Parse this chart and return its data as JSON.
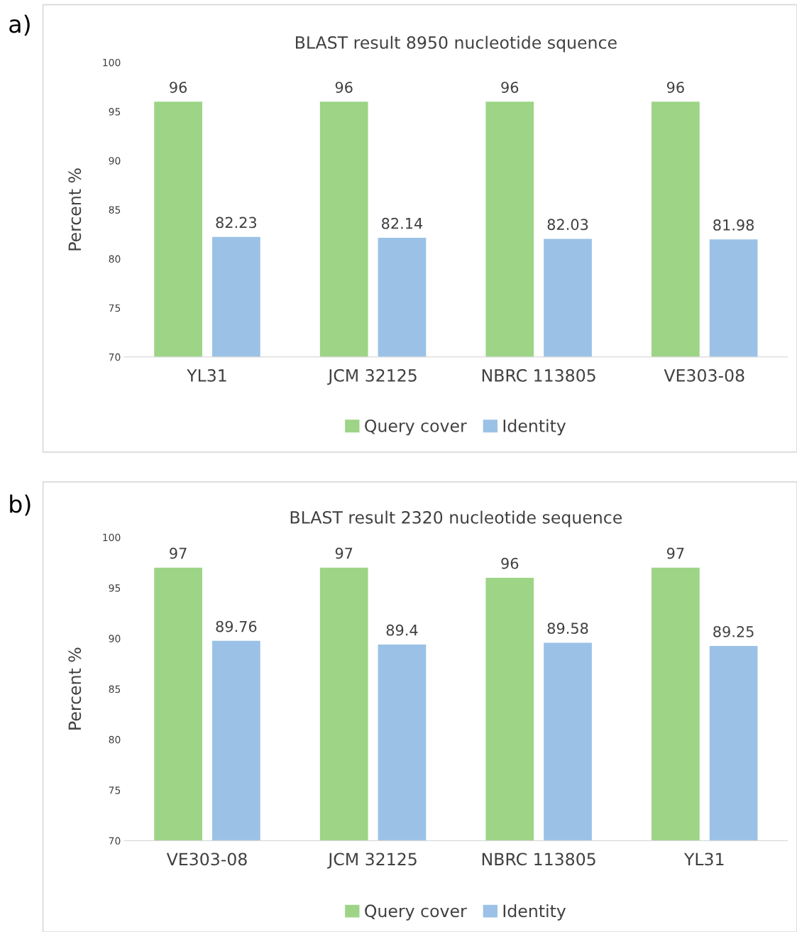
{
  "chart_data": [
    {
      "type": "bar",
      "title": "BLAST result 8950 nucleotide squence",
      "ylabel": "Percent %",
      "annotations": [
        "a)"
      ],
      "categories": [
        "YL31",
        "JCM 32125",
        "NBRC 113805",
        "VE303-08"
      ],
      "series": [
        {
          "name": "Query cover",
          "color": "#9dd486",
          "values": [
            96,
            96,
            96,
            96
          ]
        },
        {
          "name": "Identity",
          "color": "#9bc2e6",
          "values": [
            82.23,
            82.14,
            82.03,
            81.98
          ]
        }
      ],
      "ylim": [
        70,
        100
      ],
      "yticks": [
        70,
        75,
        80,
        85,
        90,
        95,
        100
      ],
      "grid": false,
      "legend": "bottom",
      "data_labels": true
    },
    {
      "type": "bar",
      "title": "BLAST result 2320 nucleotide sequence",
      "ylabel": "Percent %",
      "annotations": [
        "b)"
      ],
      "categories": [
        "VE303-08",
        "JCM 32125",
        "NBRC 113805",
        "YL31"
      ],
      "series": [
        {
          "name": "Query cover",
          "color": "#9dd486",
          "values": [
            97,
            97,
            96,
            97
          ]
        },
        {
          "name": "Identity",
          "color": "#9bc2e6",
          "values": [
            89.76,
            89.4,
            89.58,
            89.25
          ]
        }
      ],
      "ylim": [
        70,
        100
      ],
      "yticks": [
        70,
        75,
        80,
        85,
        90,
        95,
        100
      ],
      "grid": false,
      "legend": "bottom",
      "data_labels": true
    }
  ]
}
